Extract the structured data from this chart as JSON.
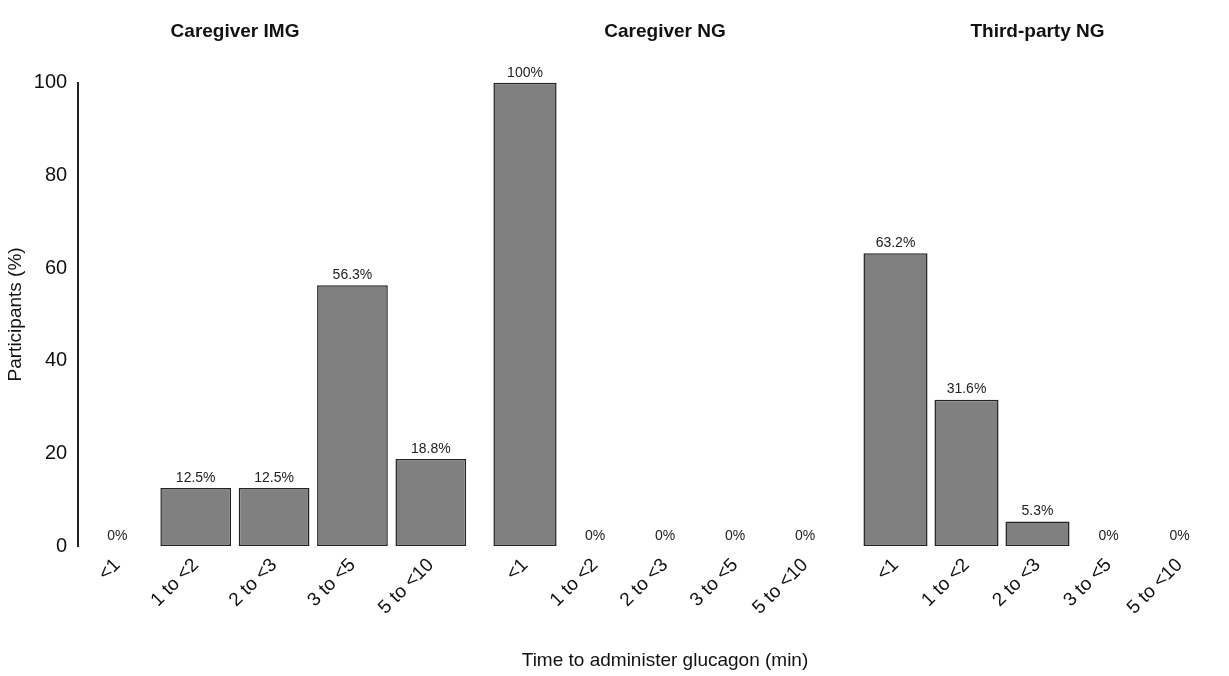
{
  "chart_data": [
    {
      "type": "bar",
      "title": "Caregiver IMG",
      "ylabel": "Participants (%)",
      "categories": [
        "<1",
        "1 to <2",
        "2 to <3",
        "3 to <5",
        "5 to <10"
      ],
      "values": [
        0,
        12.5,
        12.5,
        56.3,
        18.8
      ],
      "value_labels": [
        "0%",
        "12.5%",
        "12.5%",
        "56.3%",
        "18.8%"
      ],
      "color": "#808080",
      "ylim": [
        0,
        100
      ],
      "yticks": [
        0,
        20,
        40,
        60,
        80,
        100
      ]
    },
    {
      "type": "bar",
      "title": "Caregiver NG",
      "xlabel": "Time to administer glucagon (min)",
      "categories": [
        "<1",
        "1 to <2",
        "2 to <3",
        "3 to <5",
        "5 to <10"
      ],
      "values": [
        100,
        0,
        0,
        0,
        0
      ],
      "value_labels": [
        "100%",
        "0%",
        "0%",
        "0%",
        "0%"
      ],
      "color": "#808080",
      "ylim": [
        0,
        100
      ],
      "tick_labels": "x"
    },
    {
      "type": "bar",
      "title": "Third-party NG",
      "categories": [
        "<1",
        "1 to <2",
        "2 to <3",
        "3 to <5",
        "5 to <10"
      ],
      "values": [
        63.2,
        31.6,
        5.3,
        0,
        0
      ],
      "value_labels": [
        "63.2%",
        "31.6%",
        "5.3%",
        "0%",
        "0%"
      ],
      "color": "#808080",
      "ylim": [
        0,
        100
      ],
      "tick_labels": "x"
    }
  ]
}
